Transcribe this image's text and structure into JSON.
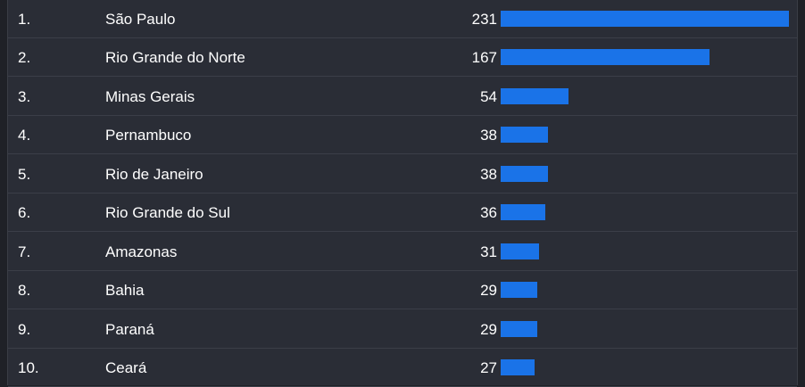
{
  "colors": {
    "background": "#2a2d36",
    "text": "#ffffff",
    "bar": "#1a73e8",
    "divider": "#3b3e48"
  },
  "chart_data": {
    "type": "bar",
    "orientation": "horizontal",
    "categories": [
      "São Paulo",
      "Rio Grande do Norte",
      "Minas Gerais",
      "Pernambuco",
      "Rio de Janeiro",
      "Rio Grande do Sul",
      "Amazonas",
      "Bahia",
      "Paraná",
      "Ceará"
    ],
    "values": [
      231,
      167,
      54,
      38,
      38,
      36,
      31,
      29,
      29,
      27
    ]
  },
  "rows": [
    {
      "rank": "1.",
      "name": "São Paulo",
      "count": "231"
    },
    {
      "rank": "2.",
      "name": "Rio Grande do Norte",
      "count": "167"
    },
    {
      "rank": "3.",
      "name": "Minas Gerais",
      "count": "54"
    },
    {
      "rank": "4.",
      "name": "Pernambuco",
      "count": "38"
    },
    {
      "rank": "5.",
      "name": "Rio de Janeiro",
      "count": "38"
    },
    {
      "rank": "6.",
      "name": "Rio Grande do Sul",
      "count": "36"
    },
    {
      "rank": "7.",
      "name": "Amazonas",
      "count": "31"
    },
    {
      "rank": "8.",
      "name": "Bahia",
      "count": "29"
    },
    {
      "rank": "9.",
      "name": "Paraná",
      "count": "29"
    },
    {
      "rank": "10.",
      "name": "Ceará",
      "count": "27"
    }
  ]
}
